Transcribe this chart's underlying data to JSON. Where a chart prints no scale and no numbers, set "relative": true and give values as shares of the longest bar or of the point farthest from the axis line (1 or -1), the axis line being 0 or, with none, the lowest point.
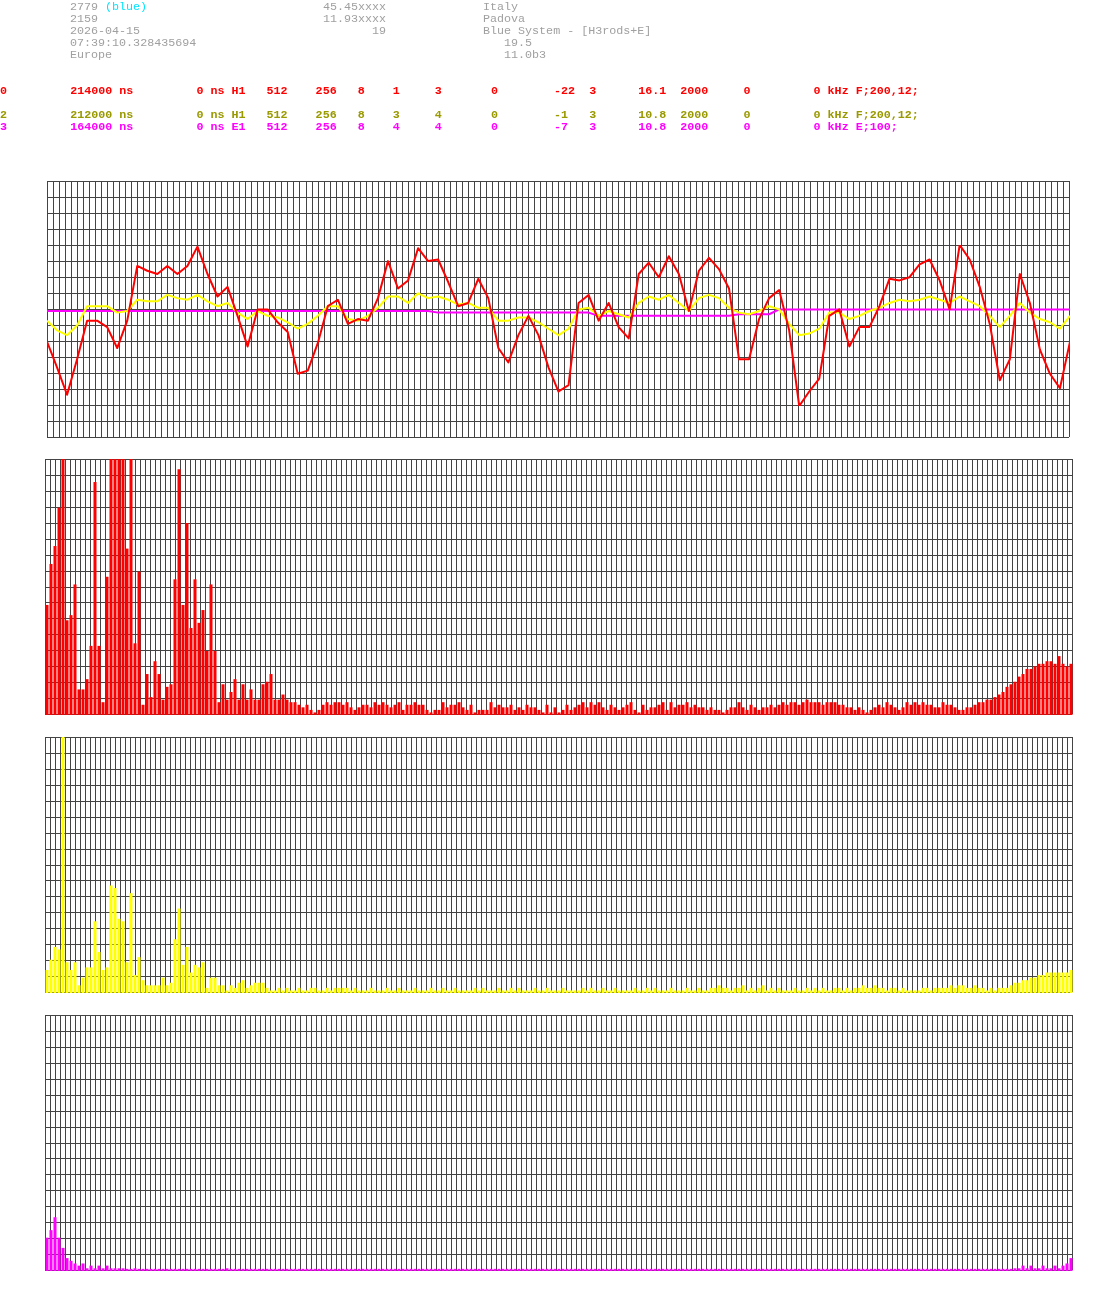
{
  "chart_data": [
    {
      "type": "other",
      "annotations": [
        "2779",
        "(blue)",
        "2159",
        "2026-04-15",
        "07:39:10.328435694",
        "Europe",
        "45.45xxxx",
        "11.93xxxx",
        "19",
        "Italy",
        "Padova",
        "Blue System - [H3rods+E]",
        "19.5",
        "11.0b3",
        "0         214000 ns         0 ns H1   512    256   8    1     3       0        -22  3      16.1  2000     0         0 kHz F;200,12;",
        "2         212000 ns         0 ns H1   512    256   8    3     4       0        -1   3      10.8  2000     0         0 kHz F;200,12;",
        "3         164000 ns         0 ns E1   512    256   8    4     4       0        -7   3      10.8  2000     0         0 kHz E;100;"
      ]
    },
    {
      "type": "line",
      "relative": true,
      "grid": true,
      "categories": [
        null,
        null,
        null,
        null,
        null,
        null,
        null,
        null,
        null,
        null,
        null,
        null,
        null,
        null,
        null,
        null,
        null,
        null,
        null,
        null,
        null,
        null,
        null,
        null,
        null,
        null,
        null,
        null,
        null,
        null,
        null,
        null,
        null,
        null,
        null,
        null,
        null,
        null,
        null,
        null,
        null,
        null,
        null,
        null,
        null,
        null,
        null,
        null,
        null,
        null,
        null,
        null,
        null,
        null,
        null,
        null,
        null,
        null,
        null,
        null,
        null,
        null,
        null,
        null,
        null,
        null,
        null,
        null,
        null,
        null,
        null,
        null,
        null,
        null,
        null,
        null,
        null,
        null,
        null,
        null,
        null,
        null,
        null,
        null,
        null,
        null,
        null,
        null,
        null,
        null,
        null,
        null,
        null,
        null,
        null,
        null,
        null,
        null,
        null,
        null,
        null,
        null,
        null
      ],
      "series": [
        {
          "color": "#ff0000",
          "values": [
            0.4,
            0.24,
            0.07,
            0.29,
            0.53,
            0.53,
            0.49,
            0.36,
            0.53,
            0.87,
            0.84,
            0.82,
            0.87,
            0.82,
            0.87,
            0.99,
            0.82,
            0.68,
            0.74,
            0.56,
            0.37,
            0.6,
            0.6,
            0.52,
            0.46,
            0.2,
            0.22,
            0.39,
            0.62,
            0.66,
            0.51,
            0.54,
            0.53,
            0.67,
            0.9,
            0.73,
            0.78,
            0.98,
            0.9,
            0.91,
            0.77,
            0.62,
            0.64,
            0.79,
            0.67,
            0.36,
            0.27,
            0.44,
            0.56,
            0.44,
            0.24,
            0.09,
            0.13,
            0.64,
            0.69,
            0.53,
            0.64,
            0.49,
            0.42,
            0.82,
            0.89,
            0.8,
            0.93,
            0.82,
            0.59,
            0.84,
            0.92,
            0.85,
            0.73,
            0.29,
            0.29,
            0.54,
            0.67,
            0.72,
            0.47,
            0,
            0.09,
            0.17,
            0.56,
            0.6,
            0.37,
            0.49,
            0.49,
            0.62,
            0.79,
            0.78,
            0.8,
            0.88,
            0.91,
            0.78,
            0.6,
            1,
            0.91,
            0.74,
            0.51,
            0.16,
            0.29,
            0.82,
            0.64,
            0.35,
            0.2,
            0.11,
            0.4
          ]
        },
        {
          "color": "#ffff00",
          "values": [
            0.53,
            0.47,
            0.44,
            0.5,
            0.62,
            0.62,
            0.62,
            0.58,
            0.59,
            0.66,
            0.65,
            0.65,
            0.69,
            0.67,
            0.66,
            0.69,
            0.65,
            0.62,
            0.64,
            0.58,
            0.54,
            0.59,
            0.56,
            0.55,
            0.52,
            0.48,
            0.51,
            0.56,
            0.62,
            0.62,
            0.54,
            0.53,
            0.56,
            0.61,
            0.68,
            0.68,
            0.64,
            0.7,
            0.67,
            0.68,
            0.66,
            0.63,
            0.64,
            0.61,
            0.61,
            0.53,
            0.53,
            0.55,
            0.55,
            0.52,
            0.48,
            0.44,
            0.48,
            0.6,
            0.61,
            0.56,
            0.59,
            0.57,
            0.55,
            0.64,
            0.68,
            0.66,
            0.69,
            0.64,
            0.59,
            0.67,
            0.69,
            0.67,
            0.61,
            0.58,
            0.57,
            0.59,
            0.62,
            0.6,
            0.51,
            0.44,
            0.45,
            0.48,
            0.58,
            0.58,
            0.54,
            0.56,
            0.59,
            0.61,
            0.64,
            0.66,
            0.65,
            0.66,
            0.68,
            0.66,
            0.64,
            0.68,
            0.65,
            0.62,
            0.56,
            0.49,
            0.56,
            0.64,
            0.58,
            0.54,
            0.52,
            0.48,
            0.56
          ]
        },
        {
          "color": "#ff00ff",
          "values": [
            0.59,
            0.59,
            0.59,
            0.59,
            0.59,
            0.59,
            0.59,
            0.59,
            0.59,
            0.59,
            0.59,
            0.59,
            0.59,
            0.59,
            0.59,
            0.59,
            0.59,
            0.59,
            0.59,
            0.59,
            0.59,
            0.59,
            0.59,
            0.59,
            0.59,
            0.59,
            0.59,
            0.59,
            0.59,
            0.59,
            0.59,
            0.59,
            0.59,
            0.59,
            0.59,
            0.59,
            0.59,
            0.59,
            0.59,
            0.58,
            0.58,
            0.58,
            0.58,
            0.58,
            0.58,
            0.58,
            0.58,
            0.58,
            0.58,
            0.58,
            0.58,
            0.58,
            0.58,
            0.58,
            0.58,
            0.56,
            0.56,
            0.56,
            0.56,
            0.56,
            0.56,
            0.56,
            0.56,
            0.56,
            0.56,
            0.56,
            0.56,
            0.56,
            0.56,
            0.57,
            0.57,
            0.57,
            0.57,
            0.6,
            0.6,
            0.6,
            0.6,
            0.6,
            0.6,
            0.6,
            0.6,
            0.6,
            0.6,
            0.6,
            0.6,
            0.6,
            0.6,
            0.6,
            0.6,
            0.6,
            0.6,
            0.6,
            0.6,
            0.6,
            0.6,
            0.6,
            0.6,
            0.6,
            0.6,
            0.6,
            0.6,
            0.6,
            0.6
          ]
        }
      ]
    },
    {
      "type": "bar",
      "relative": true,
      "grid": true,
      "color": "#ff0000",
      "categories": [
        null,
        null,
        null,
        null,
        null,
        null,
        null,
        null,
        null,
        null,
        null,
        null,
        null,
        null,
        null,
        null,
        null,
        null,
        null,
        null,
        null,
        null,
        null,
        null,
        null,
        null,
        null,
        null,
        null,
        null,
        null,
        null,
        null,
        null,
        null,
        null,
        null,
        null,
        null,
        null,
        null,
        null,
        null,
        null,
        null,
        null,
        null,
        null,
        null,
        null,
        null,
        null,
        null,
        null,
        null,
        null,
        null,
        null,
        null,
        null,
        null,
        null,
        null,
        null,
        null,
        null,
        null,
        null,
        null,
        null,
        null,
        null,
        null,
        null,
        null,
        null,
        null,
        null,
        null,
        null,
        null,
        null,
        null,
        null,
        null,
        null,
        null,
        null,
        null,
        null,
        null,
        null,
        null,
        null,
        null,
        null,
        null,
        null,
        null,
        null,
        null,
        null,
        null,
        null,
        null,
        null,
        null,
        null,
        null,
        null,
        null,
        null,
        null,
        null,
        null,
        null,
        null,
        null,
        null,
        null,
        null,
        null,
        null,
        null,
        null,
        null,
        null,
        null,
        null,
        null,
        null,
        null,
        null,
        null,
        null,
        null,
        null,
        null,
        null,
        null,
        null,
        null,
        null,
        null,
        null,
        null,
        null,
        null,
        null,
        null,
        null,
        null,
        null,
        null,
        null,
        null,
        null,
        null,
        null,
        null,
        null,
        null,
        null,
        null,
        null,
        null,
        null,
        null,
        null,
        null,
        null,
        null,
        null,
        null,
        null,
        null,
        null,
        null,
        null,
        null,
        null,
        null,
        null,
        null,
        null,
        null,
        null,
        null,
        null,
        null,
        null,
        null,
        null,
        null,
        null,
        null,
        null,
        null,
        null,
        null,
        null,
        null,
        null,
        null,
        null,
        null,
        null,
        null,
        null,
        null,
        null,
        null,
        null,
        null,
        null,
        null,
        null,
        null,
        null,
        null,
        null,
        null,
        null,
        null,
        null,
        null,
        null,
        null,
        null,
        null,
        null,
        null,
        null,
        null,
        null,
        null,
        null,
        null,
        null,
        null,
        null,
        null,
        null,
        null,
        null,
        null,
        null,
        null,
        null,
        null,
        null,
        null,
        null,
        null,
        null,
        null,
        null
      ],
      "values": [
        0.43,
        0.59,
        0.66,
        0.81,
        1,
        0.37,
        0.39,
        0.51,
        0.1,
        0.1,
        0.14,
        0.27,
        0.91,
        0.27,
        0.05,
        0.54,
        1,
        1,
        1,
        1,
        0.65,
        1,
        0.28,
        0.56,
        0.04,
        0.16,
        0.07,
        0.21,
        0.16,
        0.06,
        0.11,
        0.12,
        0.53,
        0.96,
        0.43,
        0.75,
        0.34,
        0.53,
        0.36,
        0.41,
        0.25,
        0.51,
        0.25,
        0.05,
        0.12,
        0.06,
        0.09,
        0.14,
        0.06,
        0.12,
        0.06,
        0.1,
        0.06,
        0.06,
        0.12,
        0.13,
        0.16,
        0.06,
        0.06,
        0.08,
        0.06,
        0.05,
        0.05,
        0.04,
        0.03,
        0.04,
        0.02,
        0.01,
        0.02,
        0.04,
        0.05,
        0.04,
        0.05,
        0.05,
        0.04,
        0.05,
        0.03,
        0.02,
        0.03,
        0.04,
        0.04,
        0.03,
        0.05,
        0.04,
        0.05,
        0.04,
        0.03,
        0.04,
        0.05,
        0.02,
        0.04,
        0.04,
        0.05,
        0.04,
        0.04,
        0.02,
        0.01,
        0.02,
        0.02,
        0.05,
        0.03,
        0.04,
        0.04,
        0.05,
        0.03,
        0.02,
        0.04,
        0.01,
        0.02,
        0.02,
        0.02,
        0.05,
        0.03,
        0.04,
        0.03,
        0.03,
        0.04,
        0.02,
        0.03,
        0.02,
        0.04,
        0.03,
        0.03,
        0.02,
        0.01,
        0.04,
        0.01,
        0.03,
        0.01,
        0.02,
        0.04,
        0.02,
        0.03,
        0.04,
        0.05,
        0.03,
        0.05,
        0.04,
        0.05,
        0.03,
        0.02,
        0.04,
        0.03,
        0.02,
        0.03,
        0.04,
        0.05,
        0.02,
        0.01,
        0.04,
        0.02,
        0.03,
        0.03,
        0.04,
        0.05,
        0.02,
        0.05,
        0.03,
        0.04,
        0.04,
        0.05,
        0.03,
        0.04,
        0.03,
        0.03,
        0.02,
        0.03,
        0.02,
        0.02,
        0.01,
        0.02,
        0.03,
        0.03,
        0.05,
        0.03,
        0.02,
        0.04,
        0.03,
        0.02,
        0.03,
        0.03,
        0.04,
        0.03,
        0.04,
        0.05,
        0.04,
        0.05,
        0.05,
        0.04,
        0.05,
        0.06,
        0.05,
        0.05,
        0.05,
        0.04,
        0.05,
        0.05,
        0.05,
        0.04,
        0.04,
        0.03,
        0.03,
        0.02,
        0.03,
        0.02,
        0.01,
        0.02,
        0.03,
        0.04,
        0.03,
        0.05,
        0.04,
        0.03,
        0.02,
        0.03,
        0.05,
        0.04,
        0.05,
        0.04,
        0.05,
        0.04,
        0.04,
        0.03,
        0.03,
        0.05,
        0.04,
        0.04,
        0.03,
        0.02,
        0.02,
        0.03,
        0.03,
        0.04,
        0.05,
        0.05,
        0.06,
        0.06,
        0.07,
        0.08,
        0.09,
        0.11,
        0.12,
        0.13,
        0.15,
        0.16,
        0.18,
        0.18,
        0.19,
        0.2,
        0.2,
        0.21,
        0.21,
        0.2,
        0.23,
        0.2,
        0.19,
        0.2
      ]
    },
    {
      "type": "bar",
      "relative": true,
      "grid": true,
      "color": "#ffff00",
      "categories": [
        null,
        null,
        null,
        null,
        null,
        null,
        null,
        null,
        null,
        null,
        null,
        null,
        null,
        null,
        null,
        null,
        null,
        null,
        null,
        null,
        null,
        null,
        null,
        null,
        null,
        null,
        null,
        null,
        null,
        null,
        null,
        null,
        null,
        null,
        null,
        null,
        null,
        null,
        null,
        null,
        null,
        null,
        null,
        null,
        null,
        null,
        null,
        null,
        null,
        null,
        null,
        null,
        null,
        null,
        null,
        null,
        null,
        null,
        null,
        null,
        null,
        null,
        null,
        null,
        null,
        null,
        null,
        null,
        null,
        null,
        null,
        null,
        null,
        null,
        null,
        null,
        null,
        null,
        null,
        null,
        null,
        null,
        null,
        null,
        null,
        null,
        null,
        null,
        null,
        null,
        null,
        null,
        null,
        null,
        null,
        null,
        null,
        null,
        null,
        null,
        null,
        null,
        null,
        null,
        null,
        null,
        null,
        null,
        null,
        null,
        null,
        null,
        null,
        null,
        null,
        null,
        null,
        null,
        null,
        null,
        null,
        null,
        null,
        null,
        null,
        null,
        null,
        null,
        null,
        null,
        null,
        null,
        null,
        null,
        null,
        null,
        null,
        null,
        null,
        null,
        null,
        null,
        null,
        null,
        null,
        null,
        null,
        null,
        null,
        null,
        null,
        null,
        null,
        null,
        null,
        null,
        null,
        null,
        null,
        null,
        null,
        null,
        null,
        null,
        null,
        null,
        null,
        null,
        null,
        null,
        null,
        null,
        null,
        null,
        null,
        null,
        null,
        null,
        null,
        null,
        null,
        null,
        null,
        null,
        null,
        null,
        null,
        null,
        null,
        null,
        null,
        null,
        null,
        null,
        null,
        null,
        null,
        null,
        null,
        null,
        null,
        null,
        null,
        null,
        null,
        null,
        null,
        null,
        null,
        null,
        null,
        null,
        null,
        null,
        null,
        null,
        null,
        null,
        null,
        null,
        null,
        null,
        null,
        null,
        null,
        null,
        null,
        null,
        null,
        null,
        null,
        null,
        null,
        null,
        null,
        null,
        null,
        null,
        null,
        null,
        null,
        null,
        null,
        null,
        null,
        null,
        null,
        null,
        null,
        null,
        null,
        null,
        null,
        null,
        null,
        null,
        null
      ],
      "values": [
        0.09,
        0.13,
        0.18,
        0.17,
        1,
        0.12,
        0.09,
        0.12,
        0.03,
        0.06,
        0.1,
        0.1,
        0.28,
        0.16,
        0.09,
        0.1,
        0.42,
        0.41,
        0.29,
        0.28,
        0.12,
        0.39,
        0.07,
        0.14,
        0.05,
        0.03,
        0.03,
        0.03,
        0.03,
        0.06,
        0.03,
        0.04,
        0.21,
        0.33,
        0.11,
        0.18,
        0.08,
        0.11,
        0.1,
        0.12,
        0.02,
        0.06,
        0.06,
        0.03,
        0.03,
        0.01,
        0.03,
        0.02,
        0.04,
        0.05,
        0.02,
        0.03,
        0.04,
        0.04,
        0.04,
        0.02,
        0.01,
        0.01,
        0.02,
        0.01,
        0.02,
        0.01,
        0.01,
        0.02,
        0.01,
        0.01,
        0.02,
        0.02,
        0.01,
        0.01,
        0.02,
        0.01,
        0.02,
        0.02,
        0.02,
        0.02,
        0.01,
        0.02,
        0.01,
        0.01,
        0.01,
        0.02,
        0.01,
        0.01,
        0.01,
        0.02,
        0.01,
        0.01,
        0.02,
        0.01,
        0.01,
        0.01,
        0.02,
        0.01,
        0.01,
        0.01,
        0.02,
        0.01,
        0.01,
        0.02,
        0.01,
        0.01,
        0.02,
        0.01,
        0.01,
        0.01,
        0.01,
        0.02,
        0.01,
        0.02,
        0.01,
        0.01,
        0.01,
        0.02,
        0.01,
        0.01,
        0.02,
        0.01,
        0.02,
        0.01,
        0.01,
        0.01,
        0.02,
        0.01,
        0.01,
        0.02,
        0.01,
        0.01,
        0.01,
        0.02,
        0.01,
        0.01,
        0.01,
        0.01,
        0.02,
        0.01,
        0.02,
        0.01,
        0.01,
        0.02,
        0.01,
        0.01,
        0.02,
        0.01,
        0.01,
        0.01,
        0.01,
        0.02,
        0.01,
        0.01,
        0.02,
        0.01,
        0.02,
        0.01,
        0.01,
        0.01,
        0.02,
        0.01,
        0.01,
        0.01,
        0.02,
        0.01,
        0.01,
        0.02,
        0.01,
        0.01,
        0.02,
        0.02,
        0.03,
        0.02,
        0.02,
        0.01,
        0.02,
        0.02,
        0.03,
        0.01,
        0.02,
        0.01,
        0.02,
        0.03,
        0.01,
        0.02,
        0.01,
        0.02,
        0.01,
        0.01,
        0.01,
        0.02,
        0.01,
        0.01,
        0.02,
        0.01,
        0.02,
        0.01,
        0.02,
        0.01,
        0.01,
        0.02,
        0.02,
        0.01,
        0.02,
        0.01,
        0.02,
        0.02,
        0.03,
        0.02,
        0.02,
        0.03,
        0.02,
        0.02,
        0.01,
        0.02,
        0.02,
        0.01,
        0.02,
        0.01,
        0.01,
        0.01,
        0.01,
        0.02,
        0.02,
        0.01,
        0.02,
        0.02,
        0.02,
        0.02,
        0.03,
        0.02,
        0.03,
        0.03,
        0.02,
        0.02,
        0.03,
        0.02,
        0.02,
        0.01,
        0.02,
        0.01,
        0.02,
        0.02,
        0.02,
        0.03,
        0.04,
        0.04,
        0.05,
        0.05,
        0.06,
        0.06,
        0.07,
        0.07,
        0.08,
        0.08,
        0.08,
        0.08,
        0.08,
        0.08,
        0.09
      ]
    },
    {
      "type": "bar",
      "relative": true,
      "grid": true,
      "color": "#ff00ff",
      "categories": [
        null,
        null,
        null,
        null,
        null,
        null,
        null,
        null,
        null,
        null,
        null,
        null,
        null,
        null,
        null,
        null,
        null,
        null,
        null,
        null,
        null,
        null,
        null,
        null,
        null,
        null,
        null,
        null,
        null,
        null,
        null,
        null,
        null,
        null,
        null,
        null,
        null,
        null,
        null,
        null,
        null,
        null,
        null,
        null,
        null,
        null,
        null,
        null,
        null,
        null,
        null,
        null,
        null,
        null,
        null,
        null,
        null,
        null,
        null,
        null,
        null,
        null,
        null,
        null,
        null,
        null,
        null,
        null,
        null,
        null,
        null,
        null,
        null,
        null,
        null,
        null,
        null,
        null,
        null,
        null,
        null,
        null,
        null,
        null,
        null,
        null,
        null,
        null,
        null,
        null,
        null,
        null,
        null,
        null,
        null,
        null,
        null,
        null,
        null,
        null,
        null,
        null,
        null,
        null,
        null,
        null,
        null,
        null,
        null,
        null,
        null,
        null,
        null,
        null,
        null,
        null,
        null,
        null,
        null,
        null,
        null,
        null,
        null,
        null,
        null,
        null,
        null,
        null,
        null,
        null,
        null,
        null,
        null,
        null,
        null,
        null,
        null,
        null,
        null,
        null,
        null,
        null,
        null,
        null,
        null,
        null,
        null,
        null,
        null,
        null,
        null,
        null,
        null,
        null,
        null,
        null,
        null,
        null,
        null,
        null,
        null,
        null,
        null,
        null,
        null,
        null,
        null,
        null,
        null,
        null,
        null,
        null,
        null,
        null,
        null,
        null,
        null,
        null,
        null,
        null,
        null,
        null,
        null,
        null,
        null,
        null,
        null,
        null,
        null,
        null,
        null,
        null,
        null,
        null,
        null,
        null,
        null,
        null,
        null,
        null,
        null,
        null,
        null,
        null,
        null,
        null,
        null,
        null,
        null,
        null,
        null,
        null,
        null,
        null,
        null,
        null,
        null,
        null,
        null,
        null,
        null,
        null,
        null,
        null,
        null,
        null,
        null,
        null,
        null,
        null,
        null,
        null,
        null,
        null,
        null,
        null,
        null,
        null,
        null,
        null,
        null,
        null,
        null,
        null,
        null,
        null,
        null,
        null,
        null,
        null,
        null,
        null,
        null,
        null,
        null,
        null,
        null
      ],
      "values": [
        0.62,
        0.76,
        1,
        0.62,
        0.43,
        0.24,
        0.19,
        0.14,
        0.1,
        0.14,
        0.05,
        0.1,
        0.05,
        0.1,
        0.05,
        0.1,
        0.05,
        0.05,
        0.05,
        0.05,
        0.04,
        0.04,
        0.05,
        0.04,
        0.04,
        0.04,
        0.04,
        0.04,
        0.04,
        0.04,
        0.04,
        0.04,
        0.04,
        0.04,
        0.04,
        0.04,
        0.04,
        0.04,
        0.04,
        0.04,
        0.04,
        0.04,
        0.04,
        0.04,
        0.04,
        0.05,
        0.04,
        0.04,
        0.04,
        0.04,
        0.04,
        0.04,
        0.04,
        0.04,
        0.04,
        0.04,
        0.04,
        0.04,
        0.04,
        0.04,
        0.04,
        0.04,
        0.04,
        0.04,
        0.04,
        0.04,
        0.04,
        0.04,
        0.04,
        0.04,
        0.04,
        0.04,
        0.04,
        0.04,
        0.04,
        0.04,
        0.04,
        0.04,
        0.04,
        0.04,
        0.04,
        0.04,
        0.04,
        0.04,
        0.04,
        0.04,
        0.04,
        0.04,
        0.04,
        0.04,
        0.04,
        0.04,
        0.04,
        0.04,
        0.04,
        0.04,
        0.04,
        0.04,
        0.04,
        0.04,
        0.04,
        0.04,
        0.04,
        0.04,
        0.04,
        0.04,
        0.04,
        0.04,
        0.04,
        0.04,
        0.04,
        0.04,
        0.04,
        0.04,
        0.04,
        0.04,
        0.04,
        0.04,
        0.04,
        0.04,
        0.04,
        0.04,
        0.04,
        0.04,
        0.04,
        0.04,
        0.04,
        0.04,
        0.04,
        0.04,
        0.04,
        0.04,
        0.04,
        0.04,
        0.04,
        0.04,
        0.04,
        0.04,
        0.04,
        0.04,
        0.04,
        0.04,
        0.04,
        0.04,
        0.04,
        0.04,
        0.04,
        0.04,
        0.04,
        0.04,
        0.04,
        0.04,
        0.04,
        0.04,
        0.04,
        0.04,
        0.04,
        0.04,
        0.04,
        0.04,
        0.04,
        0.04,
        0.04,
        0.04,
        0.04,
        0.04,
        0.04,
        0.04,
        0.04,
        0.04,
        0.04,
        0.04,
        0.04,
        0.04,
        0.04,
        0.04,
        0.04,
        0.04,
        0.04,
        0.04,
        0.04,
        0.04,
        0.04,
        0.04,
        0.04,
        0.04,
        0.04,
        0.04,
        0.04,
        0.04,
        0.04,
        0.04,
        0.04,
        0.04,
        0.04,
        0.04,
        0.04,
        0.04,
        0.04,
        0.04,
        0.04,
        0.04,
        0.04,
        0.04,
        0.04,
        0.04,
        0.04,
        0.04,
        0.04,
        0.04,
        0.04,
        0.04,
        0.04,
        0.04,
        0.04,
        0.04,
        0.04,
        0.04,
        0.04,
        0.04,
        0.04,
        0.04,
        0.04,
        0.04,
        0.04,
        0.04,
        0.04,
        0.04,
        0.04,
        0.04,
        0.04,
        0.04,
        0.04,
        0.04,
        0.04,
        0.04,
        0.04,
        0.04,
        0.04,
        0.04,
        0.04,
        0.04,
        0.05,
        0.05,
        0.1,
        0.05,
        0.1,
        0.05,
        0.05,
        0.1,
        0.05,
        0.05,
        0.1,
        0.05,
        0.1,
        0.14,
        0.24
      ]
    }
  ]
}
